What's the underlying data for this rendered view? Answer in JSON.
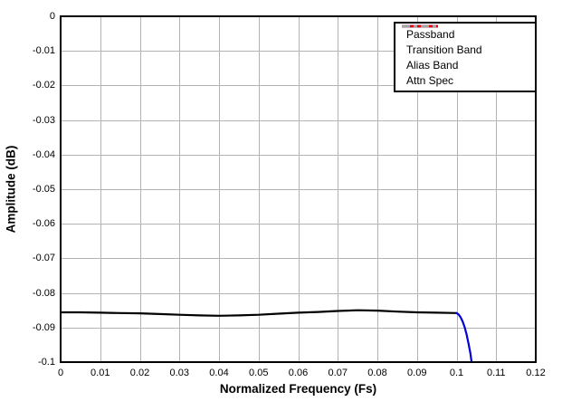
{
  "chart_data": {
    "type": "line",
    "title": "",
    "xlabel": "Normalized Frequency (Fs)",
    "ylabel": "Amplitude (dB)",
    "xlim": [
      0,
      0.12
    ],
    "ylim": [
      -0.1,
      0
    ],
    "grid": true,
    "grid_color": "#b3b3b3",
    "axis_color": "#000000",
    "background_color": "#ffffff",
    "legend_position": "top-right",
    "xticks": [
      {
        "value": 0,
        "label": "0"
      },
      {
        "value": 0.01,
        "label": "0.01"
      },
      {
        "value": 0.02,
        "label": "0.02"
      },
      {
        "value": 0.03,
        "label": "0.03"
      },
      {
        "value": 0.04,
        "label": "0.04"
      },
      {
        "value": 0.05,
        "label": "0.05"
      },
      {
        "value": 0.06,
        "label": "0.06"
      },
      {
        "value": 0.07,
        "label": "0.07"
      },
      {
        "value": 0.08,
        "label": "0.08"
      },
      {
        "value": 0.09,
        "label": "0.09"
      },
      {
        "value": 0.1,
        "label": "0.1"
      },
      {
        "value": 0.11,
        "label": "0.11"
      },
      {
        "value": 0.12,
        "label": "0.12"
      }
    ],
    "yticks": [
      {
        "value": 0,
        "label": "0"
      },
      {
        "value": -0.01,
        "label": "-0.01"
      },
      {
        "value": -0.02,
        "label": "-0.02"
      },
      {
        "value": -0.03,
        "label": "-0.03"
      },
      {
        "value": -0.04,
        "label": "-0.04"
      },
      {
        "value": -0.05,
        "label": "-0.05"
      },
      {
        "value": -0.06,
        "label": "-0.06"
      },
      {
        "value": -0.07,
        "label": "-0.07"
      },
      {
        "value": -0.08,
        "label": "-0.08"
      },
      {
        "value": -0.09,
        "label": "-0.09"
      },
      {
        "value": -0.1,
        "label": "-0.1"
      }
    ],
    "series": [
      {
        "name": "Passband",
        "color": "#000000",
        "line_style": "solid",
        "points": [
          [
            0,
            -0.0856
          ],
          [
            0.005,
            -0.0856
          ],
          [
            0.01,
            -0.0857
          ],
          [
            0.015,
            -0.0858
          ],
          [
            0.02,
            -0.0859
          ],
          [
            0.025,
            -0.0861
          ],
          [
            0.03,
            -0.0863
          ],
          [
            0.035,
            -0.0865
          ],
          [
            0.04,
            -0.0866
          ],
          [
            0.045,
            -0.0865
          ],
          [
            0.05,
            -0.0863
          ],
          [
            0.055,
            -0.086
          ],
          [
            0.06,
            -0.0857
          ],
          [
            0.065,
            -0.0855
          ],
          [
            0.07,
            -0.0852
          ],
          [
            0.075,
            -0.085
          ],
          [
            0.08,
            -0.0851
          ],
          [
            0.085,
            -0.0854
          ],
          [
            0.09,
            -0.0856
          ],
          [
            0.095,
            -0.0857
          ],
          [
            0.1,
            -0.0858
          ]
        ]
      },
      {
        "name": "Transition Band",
        "color": "#0000dd",
        "line_style": "solid",
        "points": [
          [
            0.1,
            -0.0858
          ],
          [
            0.1005,
            -0.0862
          ],
          [
            0.101,
            -0.087
          ],
          [
            0.1015,
            -0.0882
          ],
          [
            0.102,
            -0.0898
          ],
          [
            0.1025,
            -0.0918
          ],
          [
            0.103,
            -0.0945
          ],
          [
            0.1035,
            -0.0975
          ],
          [
            0.1038,
            -0.1
          ]
        ]
      },
      {
        "name": "Alias Band",
        "color": "#ee0000",
        "line_style": "solid",
        "points": []
      },
      {
        "name": "Attn Spec",
        "color": "#a6a6a6",
        "line_style": "dash-dot",
        "points": []
      }
    ]
  }
}
